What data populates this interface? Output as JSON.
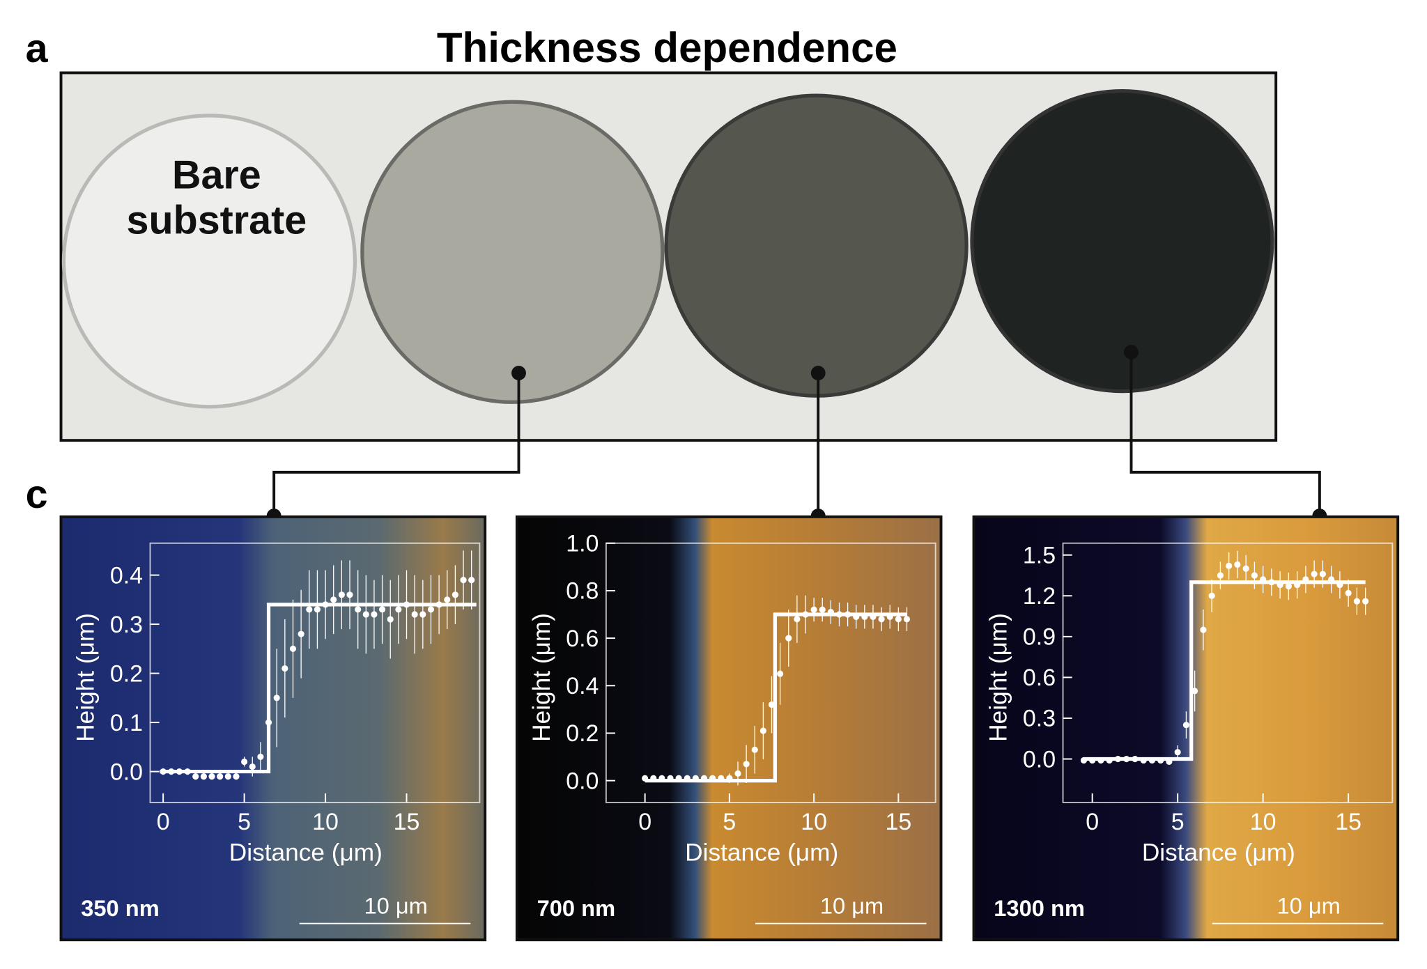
{
  "figure": {
    "panel_a": "a",
    "title": "Thickness dependence",
    "photo_label": [
      "Bare",
      "substrate"
    ],
    "panel_c": "c"
  },
  "chart_data": [
    {
      "type": "line",
      "x_label": "Distance (μm)",
      "y_label": "Height (μm)",
      "xlim": [
        -0.8,
        19.5
      ],
      "ylim": [
        -0.063,
        0.465
      ],
      "xticks": [
        0,
        5,
        10,
        15
      ],
      "yticks": [
        {
          "value": 0,
          "label": "0.0"
        },
        0.1,
        0.2,
        0.3,
        0.4
      ],
      "annotations": {
        "thickness": "350 nm",
        "scale_bar": "10 μm"
      },
      "series": [
        {
          "color": "#ffffff",
          "draw": "points",
          "x": [
            0,
            0.5,
            1,
            1.5,
            2,
            2.5,
            3,
            3.5,
            4,
            4.5,
            5,
            5.5,
            6,
            6.5,
            7,
            7.5,
            8,
            8.5,
            9,
            9.5,
            10,
            10.5,
            11,
            11.5,
            12,
            12.5,
            13,
            13.5,
            14,
            14.5,
            15,
            15.5,
            16,
            16.5,
            17,
            17.5,
            18,
            18.5,
            19
          ],
          "values": [
            0,
            0,
            0,
            0,
            -0.01,
            -0.01,
            -0.01,
            -0.01,
            -0.01,
            -0.01,
            0.02,
            0.01,
            0.03,
            0.1,
            0.15,
            0.21,
            0.25,
            0.28,
            0.33,
            0.33,
            0.34,
            0.35,
            0.36,
            0.36,
            0.33,
            0.32,
            0.32,
            0.33,
            0.31,
            0.33,
            0.34,
            0.32,
            0.32,
            0.33,
            0.34,
            0.35,
            0.36,
            0.39,
            0.39
          ],
          "errors": [
            0.005,
            0.005,
            0.005,
            0.005,
            0.005,
            0.005,
            0.005,
            0.005,
            0.005,
            0.005,
            0.01,
            0.02,
            0.03,
            0.08,
            0.1,
            0.1,
            0.1,
            0.09,
            0.08,
            0.08,
            0.07,
            0.07,
            0.07,
            0.07,
            0.08,
            0.08,
            0.07,
            0.07,
            0.08,
            0.07,
            0.07,
            0.08,
            0.07,
            0.07,
            0.06,
            0.06,
            0.06,
            0.06,
            0.06
          ]
        },
        {
          "color": "#ffffff",
          "draw": "line",
          "x": [
            -0.2,
            6.5,
            6.5,
            19.3
          ],
          "values": [
            0,
            0,
            0.34,
            0.34
          ]
        }
      ]
    },
    {
      "type": "line",
      "x_label": "Distance (μm)",
      "y_label": "Height (μm)",
      "xlim": [
        -2.3,
        17.2
      ],
      "ylim": [
        -0.092,
        1.0
      ],
      "xticks": [
        0,
        5,
        10,
        15
      ],
      "yticks": [
        {
          "value": 0,
          "label": "0.0"
        },
        0.2,
        0.4,
        0.6,
        0.8,
        {
          "value": 1,
          "label": "1.0"
        }
      ],
      "annotations": {
        "thickness": "700 nm",
        "scale_bar": "10 μm"
      },
      "series": [
        {
          "color": "#ffffff",
          "draw": "points",
          "x": [
            0,
            0.5,
            1,
            1.5,
            2,
            2.5,
            3,
            3.5,
            4,
            4.5,
            5,
            5.5,
            6,
            6.5,
            7,
            7.5,
            8,
            8.5,
            9,
            9.5,
            10,
            10.5,
            11,
            11.5,
            12,
            12.5,
            13,
            13.5,
            14,
            14.5,
            15,
            15.5
          ],
          "values": [
            0.01,
            0.01,
            0.01,
            0.01,
            0.01,
            0.01,
            0.01,
            0.01,
            0.01,
            0.01,
            0.01,
            0.03,
            0.07,
            0.13,
            0.21,
            0.32,
            0.45,
            0.6,
            0.68,
            0.7,
            0.72,
            0.72,
            0.71,
            0.7,
            0.7,
            0.69,
            0.69,
            0.69,
            0.68,
            0.69,
            0.68,
            0.68
          ],
          "errors": [
            0.01,
            0.01,
            0.01,
            0.01,
            0.01,
            0.01,
            0.01,
            0.01,
            0.01,
            0.01,
            0.02,
            0.05,
            0.08,
            0.1,
            0.12,
            0.12,
            0.13,
            0.12,
            0.1,
            0.08,
            0.05,
            0.05,
            0.05,
            0.05,
            0.05,
            0.05,
            0.05,
            0.05,
            0.05,
            0.05,
            0.05,
            0.05
          ]
        },
        {
          "color": "#ffffff",
          "draw": "line",
          "x": [
            0,
            7.7,
            7.7,
            15.5
          ],
          "values": [
            0,
            0,
            0.7,
            0.7
          ]
        }
      ]
    },
    {
      "type": "line",
      "x_label": "Distance (μm)",
      "y_label": "Height (μm)",
      "xlim": [
        -1.72,
        17.58
      ],
      "ylim": [
        -0.32,
        1.587
      ],
      "xticks": [
        0,
        5,
        10,
        15
      ],
      "yticks": [
        {
          "value": 0,
          "label": "0.0"
        },
        0.3,
        0.6,
        0.9,
        1.2,
        1.5
      ],
      "annotations": {
        "thickness": "1300 nm",
        "scale_bar": "10 μm"
      },
      "series": [
        {
          "color": "#ffffff",
          "draw": "points",
          "x": [
            -0.5,
            0,
            0.5,
            1,
            1.5,
            2,
            2.5,
            3,
            3.5,
            4,
            4.5,
            5,
            5.5,
            6,
            6.5,
            7,
            7.5,
            8,
            8.5,
            9,
            9.5,
            10,
            10.5,
            11,
            11.5,
            12,
            12.5,
            13,
            13.5,
            14,
            14.5,
            15,
            15.5,
            16
          ],
          "values": [
            -0.01,
            -0.01,
            -0.01,
            -0.01,
            0,
            0,
            0,
            -0.01,
            -0.01,
            -0.01,
            -0.02,
            0.05,
            0.25,
            0.5,
            0.95,
            1.2,
            1.35,
            1.42,
            1.43,
            1.4,
            1.35,
            1.32,
            1.3,
            1.28,
            1.27,
            1.28,
            1.32,
            1.36,
            1.36,
            1.32,
            1.28,
            1.22,
            1.16,
            1.16
          ],
          "errors": [
            0.01,
            0.01,
            0.01,
            0.01,
            0.01,
            0.01,
            0.01,
            0.01,
            0.01,
            0.01,
            0.02,
            0.05,
            0.1,
            0.15,
            0.15,
            0.12,
            0.1,
            0.1,
            0.1,
            0.1,
            0.1,
            0.1,
            0.1,
            0.1,
            0.1,
            0.1,
            0.1,
            0.1,
            0.1,
            0.1,
            0.1,
            0.1,
            0.1,
            0.1
          ]
        },
        {
          "color": "#ffffff",
          "draw": "line",
          "x": [
            -0.5,
            5.8,
            5.8,
            16
          ],
          "values": [
            0,
            0,
            1.3,
            1.3
          ]
        }
      ]
    }
  ]
}
